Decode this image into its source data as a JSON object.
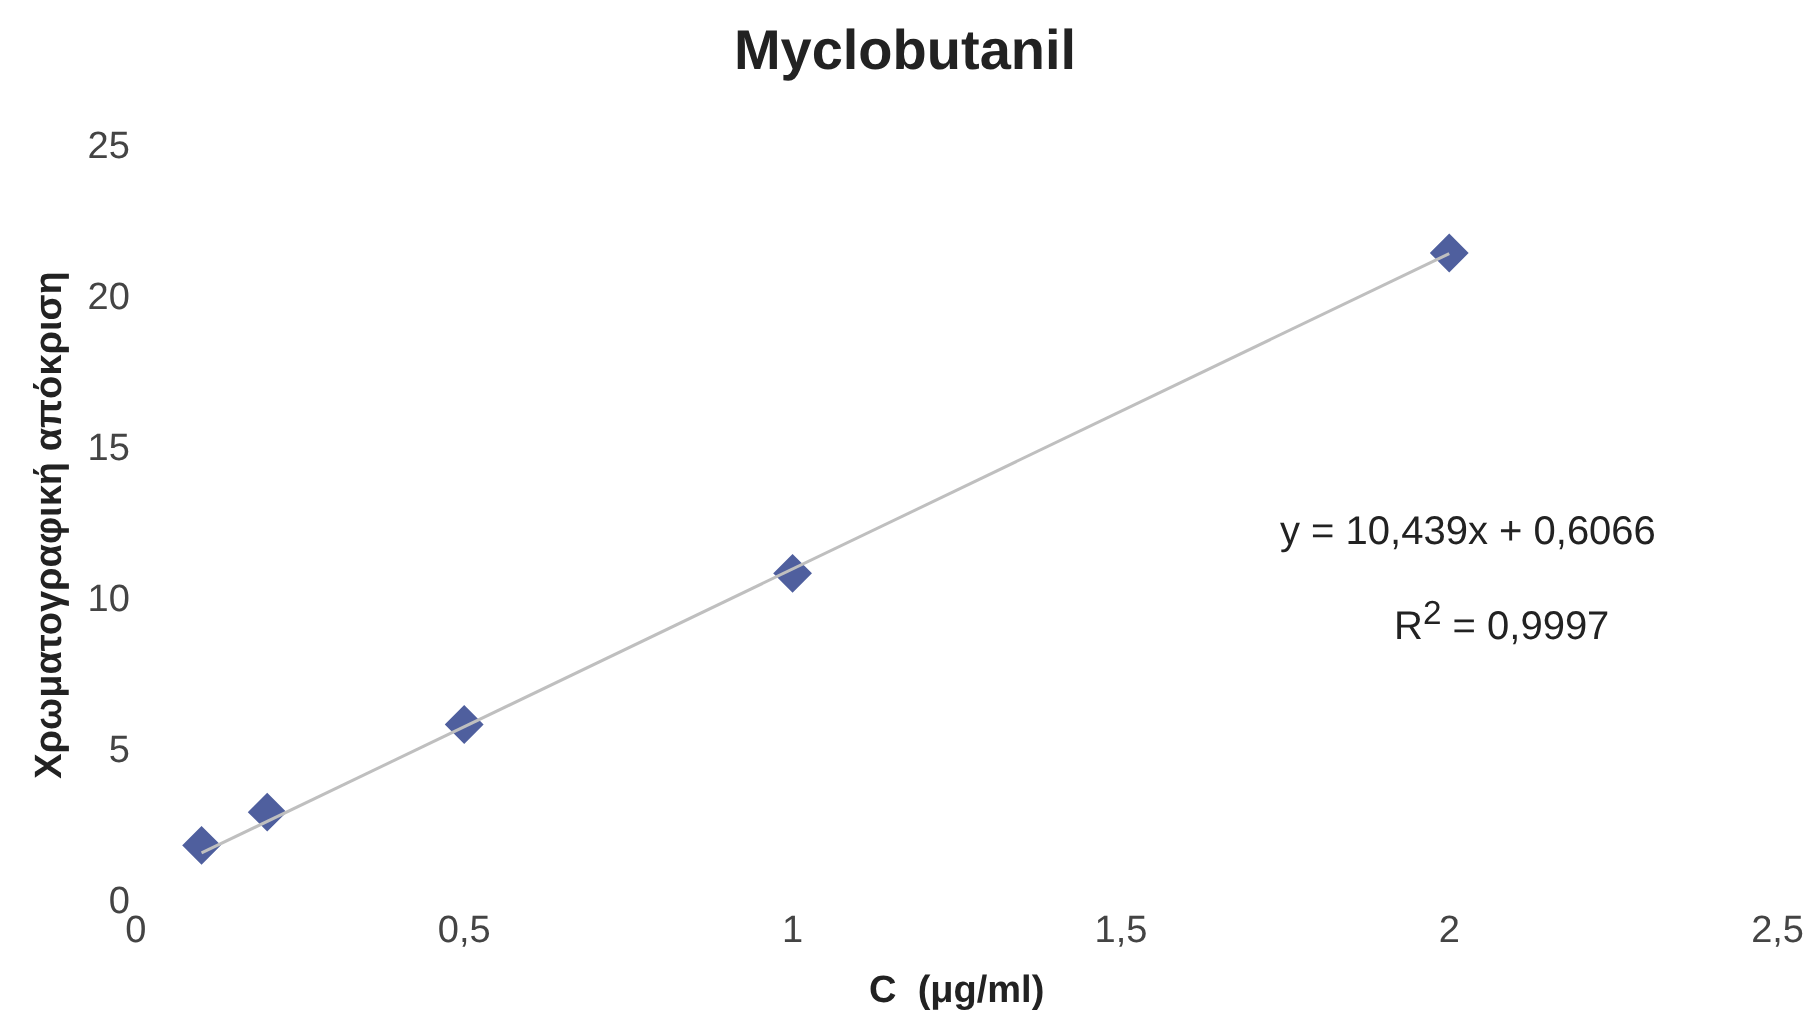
{
  "chart_data": {
    "type": "scatter",
    "title": "Myclobutanil",
    "xlabel": "C  (μg/ml)",
    "ylabel": "Χρωματογραφική απόκριση",
    "x": [
      0.1,
      0.2,
      0.5,
      1,
      2
    ],
    "series": [
      {
        "type": "scatter",
        "color": "#4f5f9e",
        "values": [
          1.9,
          3.0,
          5.9,
          10.9,
          21.5
        ],
        "marker": "diamond"
      },
      {
        "type": "line",
        "color": "#bfbfbf",
        "x": [
          0.1,
          2
        ],
        "values": [
          1.65,
          21.48
        ],
        "marker": "none"
      }
    ],
    "xlim": [
      0,
      2.5
    ],
    "xticks": [
      0,
      {
        "value": 0.5,
        "label": "0,5"
      },
      1,
      {
        "value": 1.5,
        "label": "1,5"
      },
      2,
      {
        "value": 2.5,
        "label": "2,5"
      }
    ],
    "ylim": [
      0,
      25
    ],
    "yticks": [
      0,
      5,
      10,
      15,
      20,
      25
    ],
    "grid": false,
    "legend": false,
    "annotations": [
      "y = 10,439x + 0,6066",
      "R$^{2}$ = 0,9997"
    ]
  }
}
